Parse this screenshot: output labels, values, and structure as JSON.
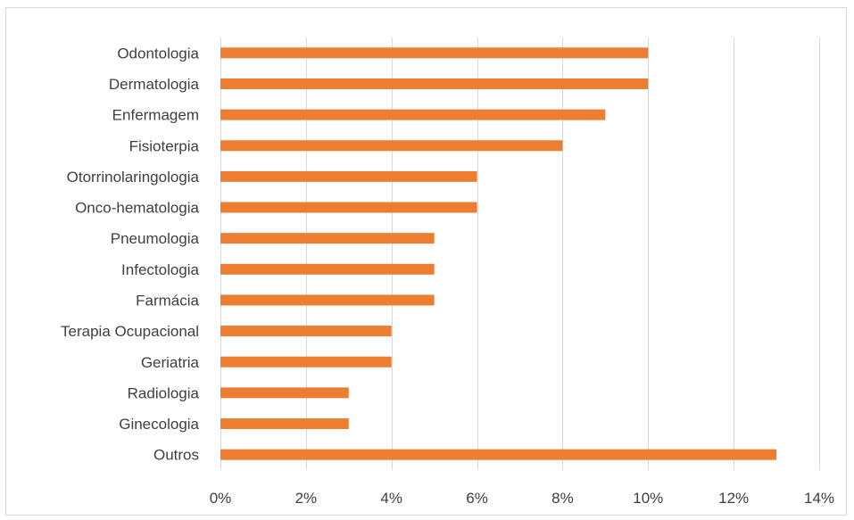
{
  "chart_data": {
    "type": "bar",
    "orientation": "horizontal",
    "categories": [
      "Odontologia",
      "Dermatologia",
      "Enfermagem",
      "Fisioterpia",
      "Otorrinolaringologia",
      "Onco-hematologia",
      "Pneumologia",
      "Infectologia",
      "Farmácia",
      "Terapia Ocupacional",
      "Geriatria",
      "Radiologia",
      "Ginecologia",
      "Outros"
    ],
    "values": [
      10,
      10,
      9,
      8,
      6,
      6,
      5,
      5,
      5,
      4,
      4,
      3,
      3,
      13
    ],
    "xlim": [
      0,
      14
    ],
    "xticks": [
      0,
      2,
      4,
      6,
      8,
      10,
      12,
      14
    ],
    "tick_suffix": "%",
    "grid": "vertical",
    "legend": "none",
    "title": "",
    "xlabel": "",
    "ylabel": "",
    "bar_color": "#ed7d31"
  }
}
